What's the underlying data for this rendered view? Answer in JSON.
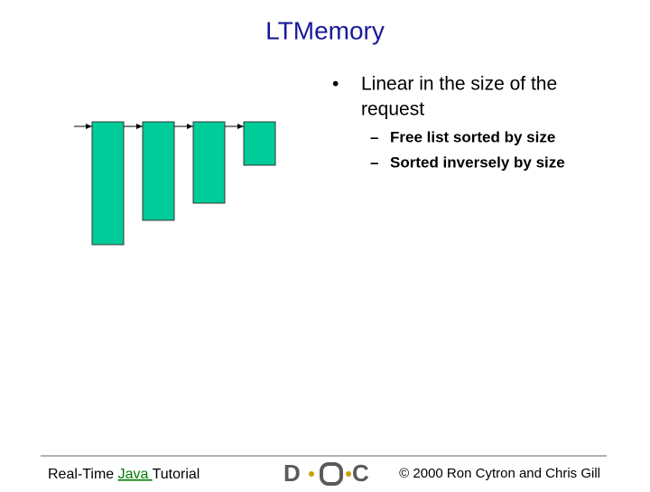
{
  "slide": {
    "title": "LTMemory",
    "bullets": [
      {
        "text": "Linear in the size of the request",
        "lines": [
          "Linear in the size of the",
          "request"
        ],
        "sub": [
          "Free list sorted by size",
          "Sorted inversely by size"
        ]
      }
    ],
    "footer": {
      "left": [
        "Real-Time ",
        "Java ",
        "Tutorial"
      ],
      "logo": [
        "D",
        "C"
      ],
      "right": "© 2000 Ron Cytron and Chris Gill"
    }
  }
}
